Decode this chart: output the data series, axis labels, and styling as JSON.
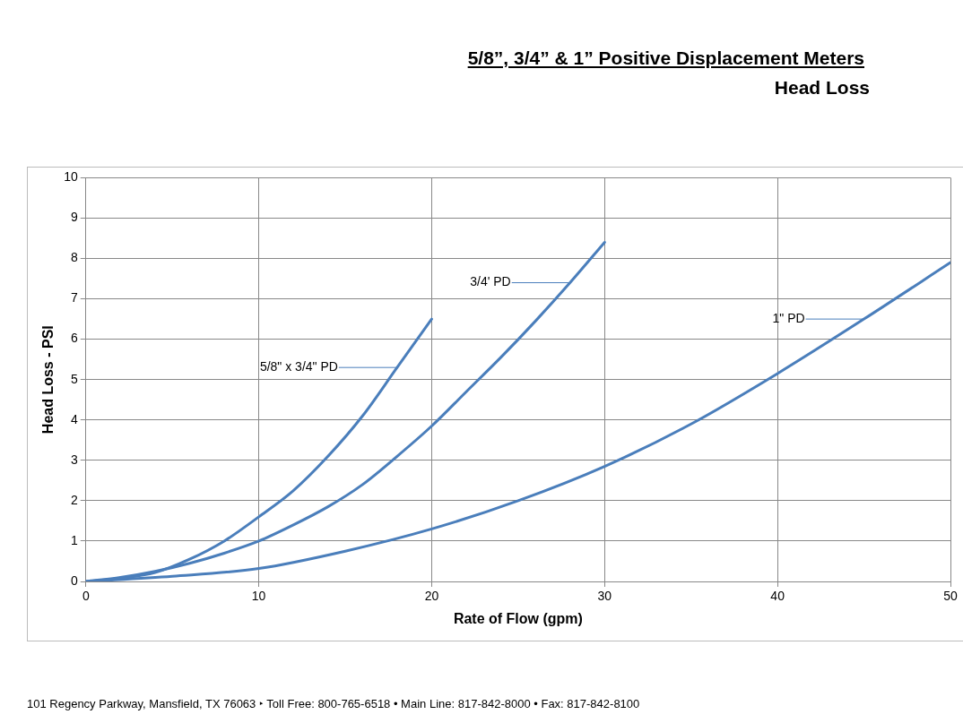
{
  "chart_data": {
    "type": "line",
    "title": "5/8”, 3/4” & 1” Positive Displacement Meters",
    "subtitle": "Head Loss",
    "xlabel": "Rate of Flow (gpm)",
    "ylabel": "Head Loss - PSI",
    "series": [
      {
        "name": "5/8\" x 3/4\" PD",
        "color": "#4a7ebb",
        "x": [
          0,
          2,
          4,
          6,
          8,
          10,
          12,
          14,
          16,
          18,
          20
        ],
        "values": [
          0,
          0.08,
          0.22,
          0.55,
          1.0,
          1.6,
          2.25,
          3.1,
          4.1,
          5.3,
          6.5
        ]
      },
      {
        "name": "3/4' PD",
        "color": "#4a7ebb",
        "x": [
          0,
          2,
          4,
          6,
          8,
          10,
          12,
          14,
          16,
          18,
          20,
          22,
          24,
          26,
          28,
          30
        ],
        "values": [
          0,
          0.1,
          0.25,
          0.45,
          0.7,
          1.0,
          1.4,
          1.85,
          2.4,
          3.1,
          3.85,
          4.7,
          5.55,
          6.45,
          7.4,
          8.4
        ]
      },
      {
        "name": "1\" PD",
        "color": "#4a7ebb",
        "x": [
          0,
          5,
          10,
          15,
          20,
          25,
          30,
          35,
          40,
          45,
          50
        ],
        "values": [
          0,
          0.13,
          0.32,
          0.75,
          1.3,
          2.0,
          2.85,
          3.9,
          5.15,
          6.5,
          7.9
        ]
      }
    ],
    "xlim": [
      0,
      50
    ],
    "xticks": [
      0,
      10,
      20,
      30,
      40,
      50
    ],
    "ylim": [
      0,
      10
    ],
    "yticks": [
      0,
      1,
      2,
      3,
      4,
      5,
      6,
      7,
      8,
      9,
      10
    ],
    "grid": true,
    "legend": "center",
    "marker": "none",
    "line_style": "solid",
    "annotations": [
      "101 Regency Parkway, Mansfield, TX 76063 ‣ Toll Free: 800-765-6518 • Main Line: 817-842-8000 • Fax: 817-842-8100"
    ]
  }
}
